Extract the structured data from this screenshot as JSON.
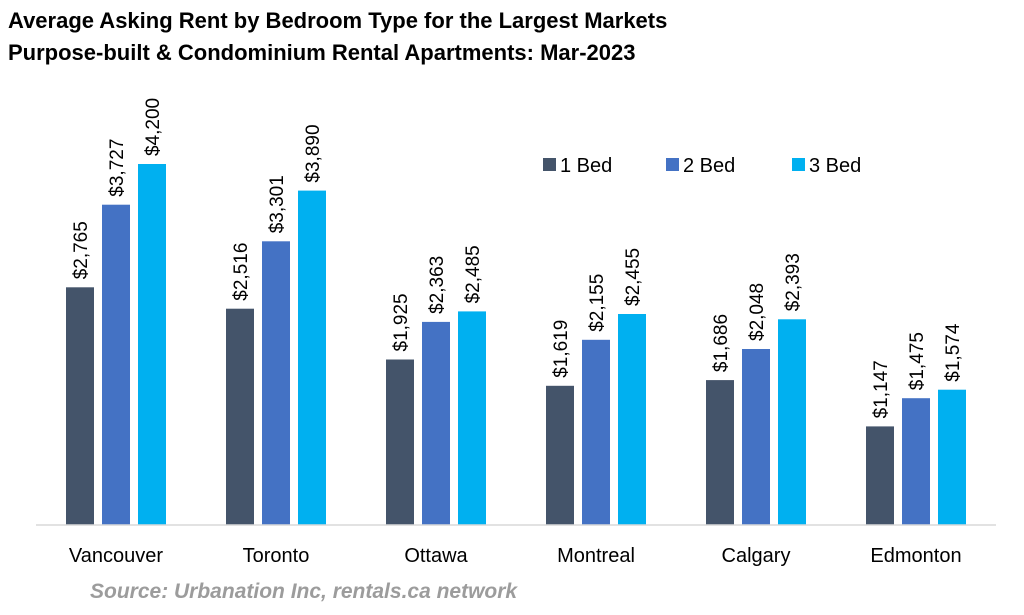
{
  "chart_data": {
    "type": "bar",
    "title": "Average Asking Rent by Bedroom Type for the Largest Markets",
    "subtitle": "Purpose-built & Condominium Rental Apartments: Mar-2023",
    "categories": [
      "Vancouver",
      "Toronto",
      "Ottawa",
      "Montreal",
      "Calgary",
      "Edmonton"
    ],
    "series": [
      {
        "name": "1 Bed",
        "color": "#44546a",
        "values": [
          2765,
          2516,
          1925,
          1619,
          1686,
          1147
        ],
        "labels": [
          "$2,765",
          "$2,516",
          "$1,925",
          "$1,619",
          "$1,686",
          "$1,147"
        ]
      },
      {
        "name": "2 Bed",
        "color": "#4472c4",
        "values": [
          3727,
          3301,
          2363,
          2155,
          2048,
          1475
        ],
        "labels": [
          "$3,727",
          "$3,301",
          "$2,363",
          "$2,155",
          "$2,048",
          "$1,475"
        ]
      },
      {
        "name": "3 Bed",
        "color": "#00b0f0",
        "values": [
          4200,
          3890,
          2485,
          2455,
          2393,
          1574
        ],
        "labels": [
          "$4,200",
          "$3,890",
          "$2,485",
          "$2,455",
          "$2,393",
          "$1,574"
        ]
      }
    ],
    "ylim": [
      0,
      4200
    ],
    "grid": false,
    "legend": "top-right",
    "xlabel": "",
    "ylabel": ""
  },
  "source": "Source: Urbanation Inc, rentals.ca network"
}
